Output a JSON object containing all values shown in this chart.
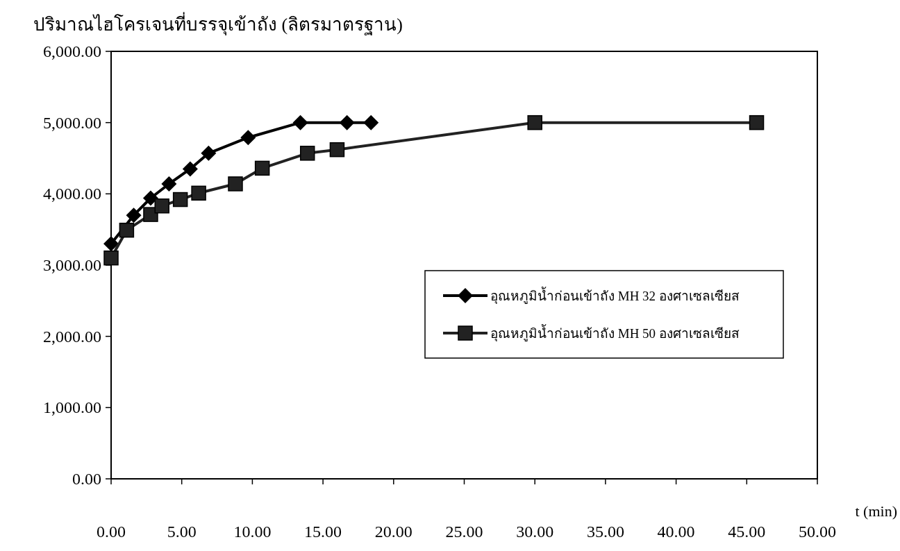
{
  "chart_data": {
    "type": "line",
    "ylabel": "ปริมาณไฮโครเจนที่บรรจุเข้าถัง (ลิตรมาตรฐาน)",
    "xlabel": "t (min)",
    "xlim": [
      0,
      50
    ],
    "ylim": [
      0,
      6000
    ],
    "xticks": [
      {
        "value": 0,
        "label": "0.00"
      },
      {
        "value": 5,
        "label": "5.00"
      },
      {
        "value": 10,
        "label": "10.00"
      },
      {
        "value": 15,
        "label": "15.00"
      },
      {
        "value": 20,
        "label": "20.00"
      },
      {
        "value": 25,
        "label": "25.00"
      },
      {
        "value": 30,
        "label": "30.00"
      },
      {
        "value": 35,
        "label": "35.00"
      },
      {
        "value": 40,
        "label": "40.00"
      },
      {
        "value": 45,
        "label": "45.00"
      },
      {
        "value": 50,
        "label": "50.00"
      }
    ],
    "yticks": [
      {
        "value": 0,
        "label": "0.00"
      },
      {
        "value": 1000,
        "label": "1,000.00"
      },
      {
        "value": 2000,
        "label": "2,000.00"
      },
      {
        "value": 3000,
        "label": "3,000.00"
      },
      {
        "value": 4000,
        "label": "4,000.00"
      },
      {
        "value": 5000,
        "label": "5,000.00"
      },
      {
        "value": 6000,
        "label": "6,000.00"
      }
    ],
    "grid": false,
    "legend": "right",
    "series": [
      {
        "name": "อุณหภูมิน้ำก่อนเข้าถัง MH 32 องศาเซลเซียส",
        "color": "#000000",
        "marker": "diamond",
        "x": [
          0,
          1.6,
          2.8,
          4.1,
          5.6,
          6.9,
          9.7,
          13.4,
          16.7,
          18.4
        ],
        "values": [
          3300,
          3700,
          3940,
          4140,
          4350,
          4570,
          4790,
          5000,
          5000,
          5000
        ]
      },
      {
        "name": "อุณหภูมิน้ำก่อนเข้าถัง MH 50 องศาเซลเซียส",
        "color": "#222222",
        "marker": "square",
        "x": [
          0,
          1.1,
          2.8,
          3.6,
          4.9,
          6.2,
          8.8,
          10.7,
          13.9,
          16,
          30,
          45.7
        ],
        "values": [
          3100,
          3490,
          3710,
          3830,
          3920,
          4010,
          4140,
          4360,
          4570,
          4620,
          5000,
          5000
        ]
      }
    ]
  }
}
